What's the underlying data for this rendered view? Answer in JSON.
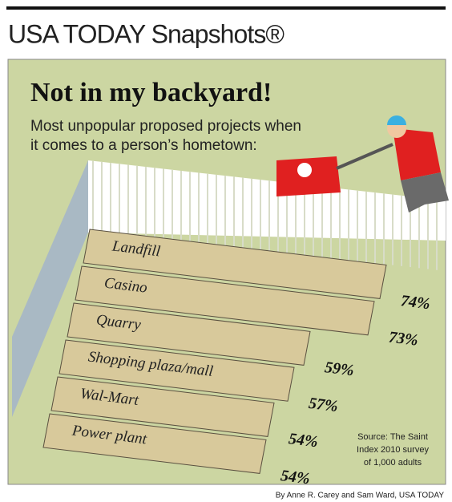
{
  "chart_data": {
    "type": "bar",
    "header": "USA TODAY Snapshots®",
    "title": "Not in my backyard!",
    "subtitle": [
      "Most unpopular proposed projects when",
      "it comes to a person’s hometown:"
    ],
    "categories": [
      "Landfill",
      "Casino",
      "Quarry",
      "Shopping plaza/mall",
      "Wal-Mart",
      "Power plant"
    ],
    "values": [
      74,
      73,
      59,
      57,
      54,
      54
    ],
    "value_labels": [
      "74%",
      "73%",
      "59%",
      "57%",
      "54%",
      "54%"
    ],
    "color": "#d8c99b",
    "source": [
      "Source: The Saint",
      "Index 2010 survey",
      "of 1,000 adults"
    ],
    "credit": "By Anne R. Carey and Sam Ward, USA TODAY"
  }
}
